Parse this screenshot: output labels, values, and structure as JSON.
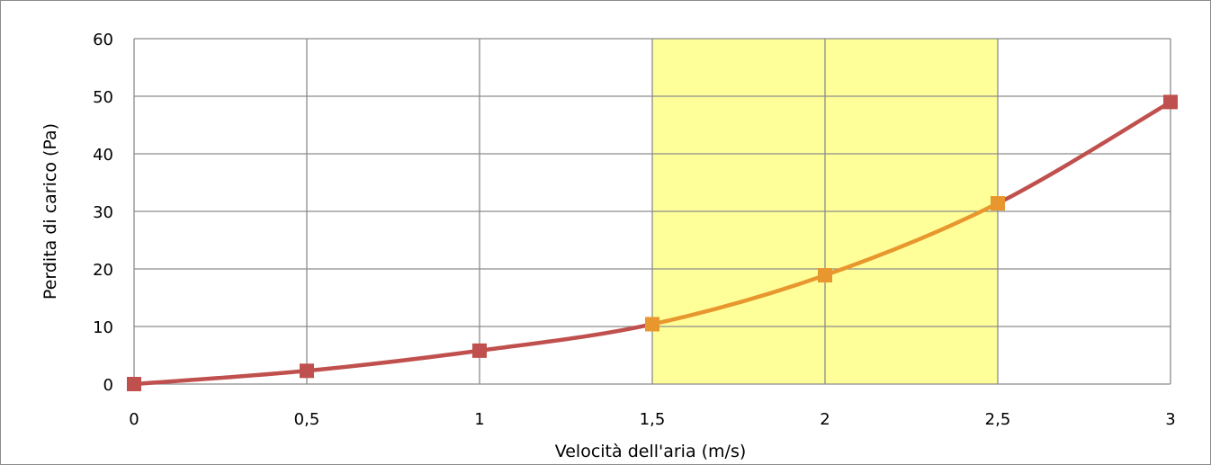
{
  "chart_data": {
    "type": "line",
    "title": "",
    "xlabel": "Velocità dell'aria (m/s)",
    "ylabel": "Perdita di carico (Pa)",
    "xlim": [
      0,
      3
    ],
    "ylim": [
      0,
      60
    ],
    "x_ticks": [
      0,
      0.5,
      1,
      1.5,
      2,
      2.5,
      3
    ],
    "x_tick_labels": [
      "0",
      "0,5",
      "1",
      "1,5",
      "2",
      "2,5",
      "3"
    ],
    "y_ticks": [
      0,
      10,
      20,
      30,
      40,
      50,
      60
    ],
    "y_tick_labels": [
      "0",
      "10",
      "20",
      "30",
      "40",
      "50",
      "60"
    ],
    "grid": true,
    "legend": "none",
    "highlight_band": {
      "x_from": 1.5,
      "x_to": 2.5,
      "color": "#ffff99"
    },
    "series": [
      {
        "x": [
          0,
          0.5,
          1,
          1.5,
          2,
          2.5,
          3
        ],
        "y": [
          0,
          2.3,
          5.8,
          10.4,
          18.9,
          31.4,
          49
        ],
        "color": "#c0504d",
        "highlight_color": "#e8972e",
        "marker": "square"
      }
    ]
  }
}
